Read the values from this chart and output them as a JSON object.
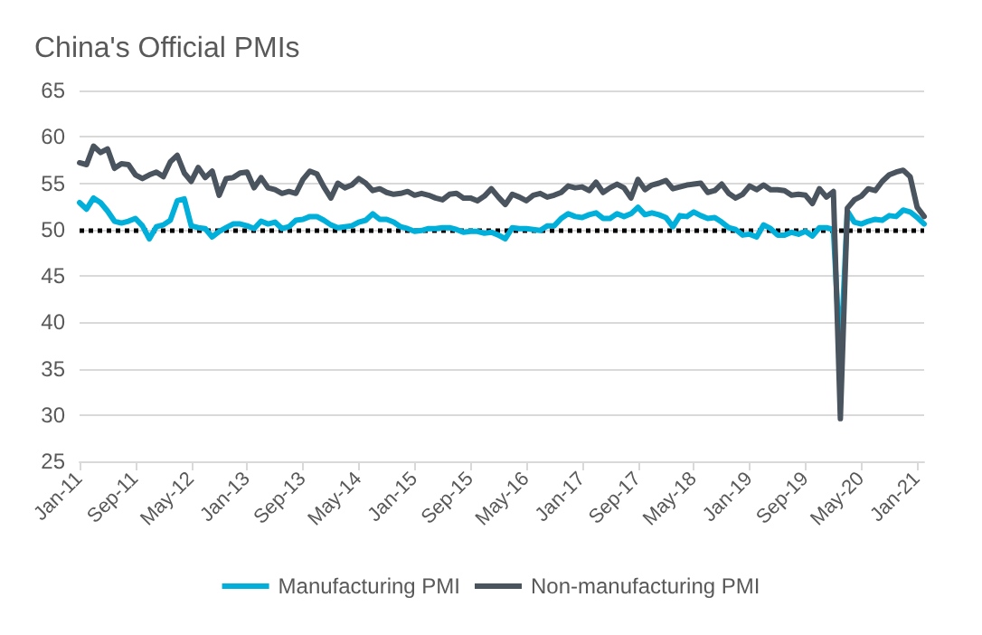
{
  "chart_data": {
    "type": "line",
    "title": "China's Official PMIs",
    "categories": [
      "Jan-11",
      null,
      null,
      null,
      null,
      null,
      null,
      null,
      "Sep-11",
      null,
      null,
      null,
      null,
      null,
      null,
      null,
      "May-12",
      null,
      null,
      null,
      null,
      null,
      null,
      null,
      "Jan-13",
      null,
      null,
      null,
      null,
      null,
      null,
      null,
      "Sep-13",
      null,
      null,
      null,
      null,
      null,
      null,
      null,
      "May-14",
      null,
      null,
      null,
      null,
      null,
      null,
      null,
      "Jan-15",
      null,
      null,
      null,
      null,
      null,
      null,
      null,
      "Sep-15",
      null,
      null,
      null,
      null,
      null,
      null,
      null,
      "May-16",
      null,
      null,
      null,
      null,
      null,
      null,
      null,
      "Jan-17",
      null,
      null,
      null,
      null,
      null,
      null,
      null,
      "Sep-17",
      null,
      null,
      null,
      null,
      null,
      null,
      null,
      "May-18",
      null,
      null,
      null,
      null,
      null,
      null,
      null,
      "Jan-19",
      null,
      null,
      null,
      null,
      null,
      null,
      null,
      "Sep-19",
      null,
      null,
      null,
      null,
      null,
      null,
      null,
      "May-20",
      null,
      null,
      null,
      null,
      null,
      null,
      null,
      "Jan-21",
      null
    ],
    "series": [
      {
        "name": "Manufacturing PMI",
        "color": "#00b0da",
        "values": [
          52.9,
          52.2,
          53.4,
          52.9,
          52.0,
          50.9,
          50.7,
          50.9,
          51.2,
          50.4,
          49.0,
          50.3,
          50.5,
          51.0,
          53.1,
          53.3,
          50.4,
          50.2,
          50.1,
          49.2,
          49.8,
          50.2,
          50.6,
          50.6,
          50.4,
          50.1,
          50.9,
          50.6,
          50.8,
          50.1,
          50.3,
          51.0,
          51.1,
          51.4,
          51.4,
          51.0,
          50.5,
          50.2,
          50.3,
          50.4,
          50.8,
          51.0,
          51.7,
          51.1,
          51.1,
          50.8,
          50.3,
          50.1,
          49.8,
          49.9,
          50.1,
          50.1,
          50.2,
          50.2,
          50.0,
          49.7,
          49.8,
          49.8,
          49.6,
          49.7,
          49.4,
          49.0,
          50.2,
          50.1,
          50.1,
          50.0,
          49.9,
          50.4,
          50.4,
          51.2,
          51.7,
          51.4,
          51.3,
          51.6,
          51.8,
          51.2,
          51.2,
          51.7,
          51.4,
          51.7,
          52.4,
          51.6,
          51.8,
          51.6,
          51.3,
          50.3,
          51.5,
          51.4,
          51.9,
          51.5,
          51.2,
          51.3,
          50.8,
          50.2,
          50.0,
          49.4,
          49.5,
          49.2,
          50.5,
          50.1,
          49.4,
          49.4,
          49.7,
          49.5,
          49.8,
          49.3,
          50.2,
          50.2,
          50.0,
          35.7,
          52.0,
          50.8,
          50.6,
          50.9,
          51.1,
          51.0,
          51.5,
          51.4,
          52.1,
          51.9,
          51.3,
          50.6
        ]
      },
      {
        "name": "Non-manufacturing PMI",
        "color": "#4a545e",
        "values": [
          57.2,
          57.0,
          59.0,
          58.3,
          58.7,
          56.6,
          57.1,
          57.0,
          55.9,
          55.5,
          55.9,
          56.2,
          55.7,
          57.3,
          58.0,
          56.1,
          55.2,
          56.7,
          55.6,
          56.3,
          53.7,
          55.5,
          55.6,
          56.1,
          56.2,
          54.5,
          55.6,
          54.5,
          54.3,
          53.9,
          54.1,
          53.9,
          55.4,
          56.3,
          56.0,
          54.6,
          53.4,
          55.0,
          54.5,
          54.8,
          55.5,
          55.0,
          54.2,
          54.4,
          54.0,
          53.8,
          53.9,
          54.1,
          53.7,
          53.9,
          53.7,
          53.4,
          53.2,
          53.8,
          53.9,
          53.4,
          53.4,
          53.1,
          53.6,
          54.4,
          53.5,
          52.7,
          53.8,
          53.5,
          53.1,
          53.7,
          53.9,
          53.5,
          53.7,
          54.0,
          54.7,
          54.5,
          54.6,
          54.2,
          55.1,
          54.0,
          54.5,
          54.9,
          54.5,
          53.4,
          55.4,
          54.3,
          54.8,
          55.0,
          55.3,
          54.4,
          54.6,
          54.8,
          54.9,
          55.0,
          54.0,
          54.2,
          54.9,
          53.9,
          53.4,
          53.8,
          54.7,
          54.3,
          54.8,
          54.3,
          54.3,
          54.2,
          53.7,
          53.8,
          53.7,
          52.8,
          54.4,
          53.5,
          54.1,
          29.6,
          52.3,
          53.2,
          53.6,
          54.4,
          54.2,
          55.2,
          55.9,
          56.2,
          56.4,
          55.7,
          52.4,
          51.4
        ]
      }
    ],
    "ylim": [
      25,
      65
    ],
    "yticks": [
      25,
      30,
      35,
      40,
      45,
      50,
      55,
      60,
      65
    ],
    "grid": "y",
    "legend": "bottom",
    "marker": "none",
    "line_style": "solid",
    "ref_lines": [
      {
        "axis": "y",
        "value": 50,
        "color": "#000000",
        "line_style": "dotted"
      }
    ]
  }
}
